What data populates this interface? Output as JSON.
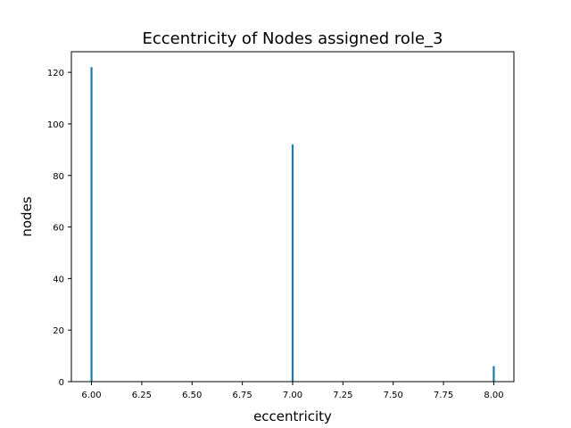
{
  "chart_data": {
    "type": "bar",
    "title": "Eccentricity of Nodes assigned role_3",
    "xlabel": "eccentricity",
    "ylabel": "nodes",
    "x": [
      6.0,
      7.0,
      8.0
    ],
    "values": [
      122,
      92,
      6
    ],
    "xlim": [
      5.9,
      8.1
    ],
    "ylim": [
      0,
      128
    ],
    "xticks": [
      "6.00",
      "6.25",
      "6.50",
      "6.75",
      "7.00",
      "7.25",
      "7.50",
      "7.75",
      "8.00"
    ],
    "xtick_values": [
      6.0,
      6.25,
      6.5,
      6.75,
      7.0,
      7.25,
      7.5,
      7.75,
      8.0
    ],
    "yticks": [
      "0",
      "20",
      "40",
      "60",
      "80",
      "100",
      "120"
    ],
    "ytick_values": [
      0,
      20,
      40,
      60,
      80,
      100,
      120
    ],
    "bar_color": "#1f77b4",
    "grid": false,
    "legend": "none"
  }
}
